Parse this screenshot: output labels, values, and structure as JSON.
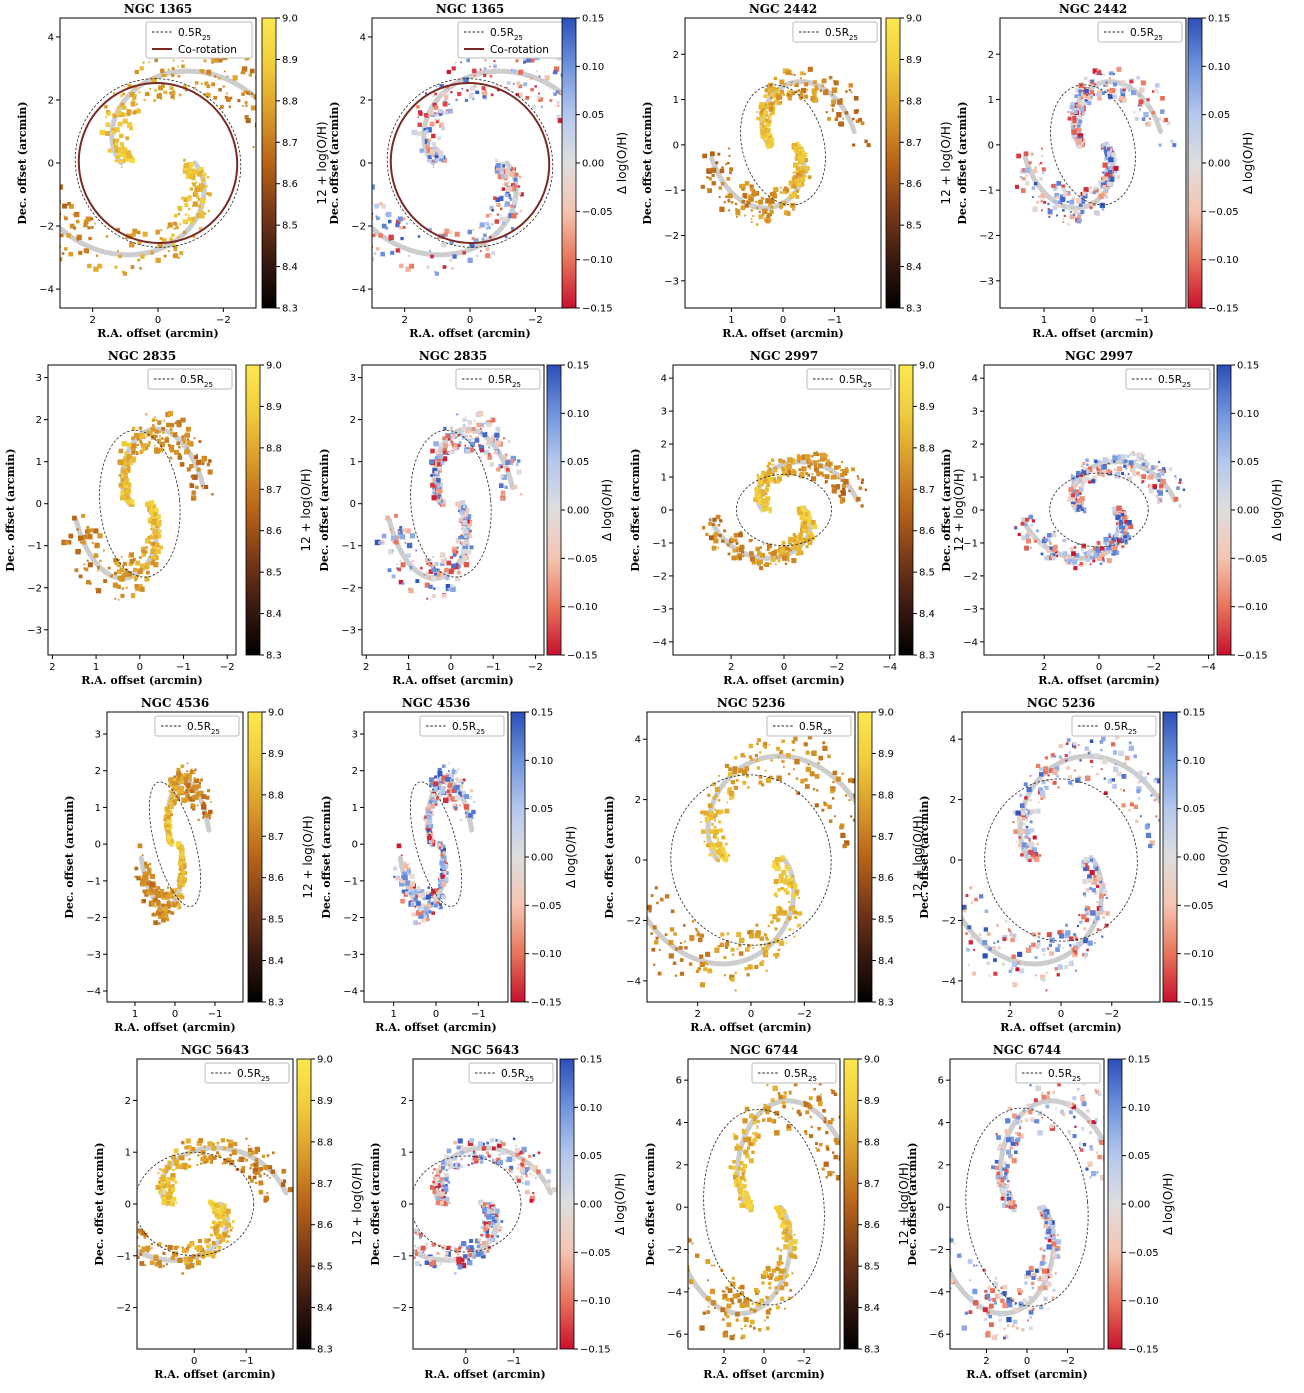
{
  "figure": {
    "xlabel": "R.A. offset (arcmin)",
    "ylabel": "Dec. offset (arcmin)",
    "colorbars": {
      "metallicity": {
        "label": "12 + log(O/H)",
        "range": [
          8.3,
          9.0
        ],
        "ticks": [
          "8.3",
          "8.4",
          "8.5",
          "8.6",
          "8.7",
          "8.8",
          "8.9",
          "9.0"
        ],
        "cmap": [
          "#000000",
          "#3a1a10",
          "#7a3a18",
          "#b86418",
          "#d99a2a",
          "#f0cc3c",
          "#fce84e"
        ]
      },
      "residual": {
        "label": "Δ log(O/H)",
        "range": [
          -0.15,
          0.15
        ],
        "ticks": [
          "−0.15",
          "−0.10",
          "−0.05",
          "0.00",
          "0.05",
          "0.10",
          "0.15"
        ],
        "cmap": [
          "#c8102e",
          "#e8745a",
          "#f5c4b0",
          "#dedede",
          "#b4c8ee",
          "#6f94dd",
          "#2b4fb8"
        ]
      }
    },
    "legend": {
      "half_r25": "0.5R",
      "half_r25_sub": "25",
      "corotation": "Co-rotation"
    }
  },
  "chart_data": [
    {
      "type": "heatmap",
      "title": "NGC 1365",
      "map": "metallicity",
      "xlim": [
        3,
        -3
      ],
      "ylim": [
        -4.6,
        4.6
      ],
      "xticks": [
        2,
        0,
        -2
      ],
      "yticks": [
        -4,
        -2,
        0,
        2,
        4
      ],
      "has_corotation": true,
      "ellipse": {
        "cx": 0,
        "cy": 0,
        "rx": 2.6,
        "ry": 2.7,
        "angle": -30
      },
      "corotation": {
        "cx": 0,
        "cy": 0,
        "rx": 2.5,
        "ry": 2.55,
        "angle": -30
      }
    },
    {
      "type": "heatmap",
      "title": "NGC 1365",
      "map": "residual",
      "xlim": [
        3,
        -3
      ],
      "ylim": [
        -4.6,
        4.6
      ],
      "xticks": [
        2,
        0,
        -2
      ],
      "yticks": [
        -4,
        -2,
        0,
        2,
        4
      ],
      "has_corotation": true,
      "ellipse": {
        "cx": 0,
        "cy": 0,
        "rx": 2.6,
        "ry": 2.7,
        "angle": -30
      },
      "corotation": {
        "cx": 0,
        "cy": 0,
        "rx": 2.5,
        "ry": 2.55,
        "angle": -30
      }
    },
    {
      "type": "heatmap",
      "title": "NGC 2442",
      "map": "metallicity",
      "xlim": [
        1.9,
        -1.9
      ],
      "ylim": [
        -3.6,
        2.8
      ],
      "xticks": [
        1,
        0,
        -1
      ],
      "yticks": [
        -3,
        -2,
        -1,
        0,
        1,
        2
      ],
      "has_corotation": false,
      "ellipse": {
        "cx": 0,
        "cy": 0,
        "rx": 0.9,
        "ry": 1.35,
        "angle": -15
      }
    },
    {
      "type": "heatmap",
      "title": "NGC 2442",
      "map": "residual",
      "xlim": [
        1.9,
        -1.9
      ],
      "ylim": [
        -3.6,
        2.8
      ],
      "xticks": [
        1,
        0,
        -1
      ],
      "yticks": [
        -3,
        -2,
        -1,
        0,
        1,
        2
      ],
      "has_corotation": false,
      "ellipse": {
        "cx": 0,
        "cy": 0,
        "rx": 0.9,
        "ry": 1.35,
        "angle": -15
      }
    },
    {
      "type": "heatmap",
      "title": "NGC 2835",
      "map": "metallicity",
      "xlim": [
        2.1,
        -2.2
      ],
      "ylim": [
        -3.6,
        3.3
      ],
      "xticks": [
        2,
        1,
        0,
        -1,
        -2
      ],
      "yticks": [
        -3,
        -2,
        -1,
        0,
        1,
        2,
        3
      ],
      "has_corotation": false,
      "ellipse": {
        "cx": 0,
        "cy": 0,
        "rx": 0.95,
        "ry": 1.75,
        "angle": -5
      }
    },
    {
      "type": "heatmap",
      "title": "NGC 2835",
      "map": "residual",
      "xlim": [
        2.1,
        -2.2
      ],
      "ylim": [
        -3.6,
        3.3
      ],
      "xticks": [
        2,
        1,
        0,
        -1,
        -2
      ],
      "yticks": [
        -3,
        -2,
        -1,
        0,
        1,
        2,
        3
      ],
      "has_corotation": false,
      "ellipse": {
        "cx": 0,
        "cy": 0,
        "rx": 0.95,
        "ry": 1.75,
        "angle": -5
      }
    },
    {
      "type": "heatmap",
      "title": "NGC 2997",
      "map": "metallicity",
      "xlim": [
        4.2,
        -4.2
      ],
      "ylim": [
        -4.4,
        4.4
      ],
      "xticks": [
        2,
        0,
        -2,
        -4
      ],
      "yticks": [
        -4,
        -3,
        -2,
        -1,
        0,
        1,
        2,
        3,
        4
      ],
      "has_corotation": false,
      "ellipse": {
        "cx": 0,
        "cy": 0,
        "rx": 1.8,
        "ry": 1.35,
        "angle": 0
      }
    },
    {
      "type": "heatmap",
      "title": "NGC 2997",
      "map": "residual",
      "xlim": [
        4.2,
        -4.2
      ],
      "ylim": [
        -4.4,
        4.4
      ],
      "xticks": [
        2,
        0,
        -2,
        -4
      ],
      "yticks": [
        -4,
        -3,
        -2,
        -1,
        0,
        1,
        2,
        3,
        4
      ],
      "has_corotation": false,
      "ellipse": {
        "cx": 0,
        "cy": 0,
        "rx": 1.8,
        "ry": 1.35,
        "angle": 0
      }
    },
    {
      "type": "heatmap",
      "title": "NGC 4536",
      "map": "metallicity",
      "xlim": [
        1.7,
        -1.7
      ],
      "ylim": [
        -4.3,
        3.6
      ],
      "xticks": [
        1,
        0,
        -1
      ],
      "yticks": [
        -4,
        -3,
        -2,
        -1,
        0,
        1,
        2,
        3
      ],
      "has_corotation": false,
      "ellipse": {
        "cx": 0,
        "cy": 0,
        "rx": 0.55,
        "ry": 1.75,
        "angle": -15
      }
    },
    {
      "type": "heatmap",
      "title": "NGC 4536",
      "map": "residual",
      "xlim": [
        1.7,
        -1.7
      ],
      "ylim": [
        -4.3,
        3.6
      ],
      "xticks": [
        1,
        0,
        -1
      ],
      "yticks": [
        -4,
        -3,
        -2,
        -1,
        0,
        1,
        2,
        3
      ],
      "has_corotation": false,
      "ellipse": {
        "cx": 0,
        "cy": 0,
        "rx": 0.55,
        "ry": 1.75,
        "angle": -15
      }
    },
    {
      "type": "heatmap",
      "title": "NGC 5236",
      "map": "metallicity",
      "xlim": [
        3.9,
        -3.9
      ],
      "ylim": [
        -4.7,
        4.9
      ],
      "xticks": [
        2,
        0,
        -2
      ],
      "yticks": [
        -4,
        -2,
        0,
        2,
        4
      ],
      "has_corotation": false,
      "ellipse": {
        "cx": 0,
        "cy": 0,
        "rx": 3.0,
        "ry": 3.2,
        "angle": -10
      }
    },
    {
      "type": "heatmap",
      "title": "NGC 5236",
      "map": "residual",
      "xlim": [
        3.9,
        -3.9
      ],
      "ylim": [
        -4.7,
        4.9
      ],
      "xticks": [
        2,
        0,
        -2
      ],
      "yticks": [
        -4,
        -2,
        0,
        2,
        4
      ],
      "has_corotation": false,
      "ellipse": {
        "cx": 0,
        "cy": 0,
        "rx": 3.0,
        "ry": 3.2,
        "angle": -10
      }
    },
    {
      "type": "heatmap",
      "title": "NGC 5643",
      "map": "metallicity",
      "xlim": [
        1.1,
        -1.9
      ],
      "ylim": [
        -2.8,
        2.8
      ],
      "xticks": [
        0,
        -1
      ],
      "yticks": [
        -2,
        -1,
        0,
        1,
        2
      ],
      "has_corotation": false,
      "ellipse": {
        "cx": 0,
        "cy": 0,
        "rx": 1.15,
        "ry": 1.0,
        "angle": 0
      }
    },
    {
      "type": "heatmap",
      "title": "NGC 5643",
      "map": "residual",
      "xlim": [
        1.1,
        -1.9
      ],
      "ylim": [
        -2.8,
        2.8
      ],
      "xticks": [
        0,
        -1
      ],
      "yticks": [
        -2,
        -1,
        0,
        1,
        2
      ],
      "has_corotation": false,
      "ellipse": {
        "cx": 0,
        "cy": 0,
        "rx": 1.15,
        "ry": 1.0,
        "angle": 0
      }
    },
    {
      "type": "heatmap",
      "title": "NGC 6744",
      "map": "metallicity",
      "xlim": [
        3.8,
        -3.8
      ],
      "ylim": [
        -6.7,
        7.0
      ],
      "xticks": [
        2,
        0,
        -2
      ],
      "yticks": [
        -6,
        -4,
        -2,
        0,
        2,
        4,
        6
      ],
      "has_corotation": false,
      "ellipse": {
        "cx": 0,
        "cy": 0,
        "rx": 3.0,
        "ry": 4.9,
        "angle": -5
      }
    },
    {
      "type": "heatmap",
      "title": "NGC 6744",
      "map": "residual",
      "xlim": [
        3.8,
        -3.8
      ],
      "ylim": [
        -6.7,
        7.0
      ],
      "xticks": [
        2,
        0,
        -2
      ],
      "yticks": [
        -6,
        -4,
        -2,
        0,
        2,
        4,
        6
      ],
      "has_corotation": false,
      "ellipse": {
        "cx": 0,
        "cy": 0,
        "rx": 3.0,
        "ry": 4.9,
        "angle": -5
      }
    }
  ]
}
